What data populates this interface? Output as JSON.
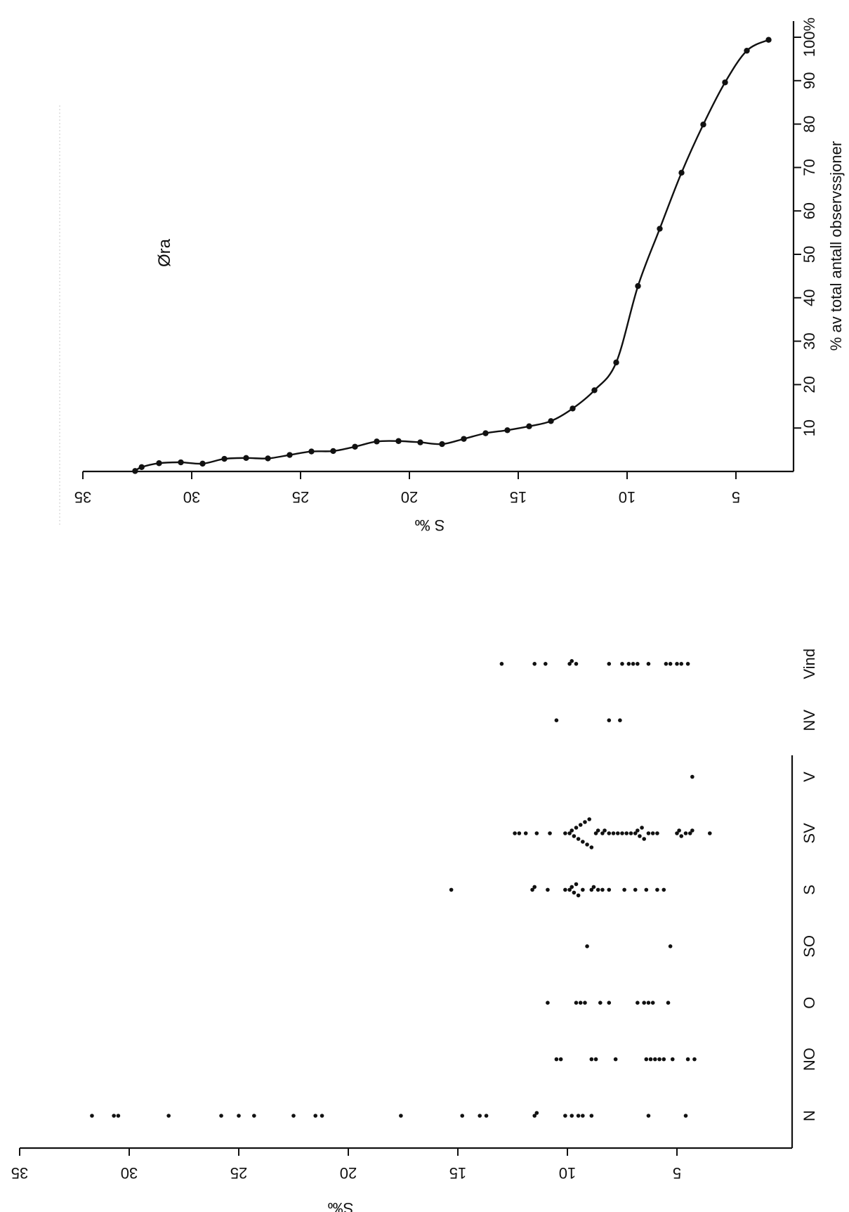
{
  "chart_data": [
    {
      "type": "line",
      "title": "Øra",
      "xlabel": "S ‰",
      "ylabel": "% av total antall observssjoner",
      "xlim": [
        35,
        2.5
      ],
      "ylim": [
        0,
        100
      ],
      "x_ticks": [
        "35",
        "30",
        "25",
        "20",
        "15",
        "10",
        "5"
      ],
      "y_ticks": [
        "10",
        "20",
        "30",
        "40",
        "50",
        "60",
        "70",
        "80",
        "90",
        "100%"
      ],
      "grid": false,
      "x": [
        32.6,
        32.3,
        31.5,
        30.5,
        29.5,
        28.5,
        27.5,
        26.5,
        25.5,
        24.5,
        23.5,
        22.5,
        21.5,
        20.5,
        19.5,
        18.5,
        17.5,
        16.5,
        15.5,
        14.5,
        13.5,
        12.5,
        11.5,
        10.5,
        9.5,
        8.5,
        7.5,
        6.5,
        5.5,
        4.5,
        3.5
      ],
      "values": [
        0.1,
        1.0,
        1.9,
        2.1,
        1.8,
        2.9,
        3.1,
        3.0,
        3.8,
        4.6,
        4.7,
        5.7,
        6.9,
        7.0,
        6.7,
        6.3,
        7.5,
        8.8,
        9.5,
        10.4,
        11.6,
        14.5,
        18.7,
        25.1,
        42.7,
        55.9,
        68.8,
        79.9,
        89.6,
        96.9,
        99.4
      ]
    },
    {
      "type": "scatter",
      "xlabel": "S‰",
      "ylabel": "Vind",
      "xlim": [
        35,
        0.5
      ],
      "x_ticks": [
        "35",
        "30",
        "25",
        "20",
        "15",
        "10",
        "5"
      ],
      "categories": [
        "N",
        "NO",
        "O",
        "SO",
        "S",
        "SV",
        "V",
        "NV",
        "Vind"
      ],
      "grid": false,
      "points": {
        "N": [
          31.7,
          30.7,
          30.5,
          28.2,
          25.8,
          25.0,
          24.3,
          22.5,
          21.5,
          21.2,
          17.6,
          14.8,
          14.0,
          13.7,
          11.5,
          11.4,
          10.1,
          9.8,
          9.5,
          9.3,
          8.9,
          6.3,
          4.6
        ],
        "NO": [
          10.5,
          10.3,
          8.9,
          8.7,
          7.8,
          6.4,
          6.2,
          6.0,
          5.8,
          5.6,
          5.2,
          4.5,
          4.2
        ],
        "O": [
          10.9,
          9.6,
          9.4,
          9.2,
          8.5,
          8.1,
          6.8,
          6.5,
          6.3,
          6.1,
          5.4
        ],
        "SO": [
          9.1,
          5.3
        ],
        "S": [
          15.3,
          11.6,
          11.5,
          10.9,
          10.1,
          9.9,
          9.8,
          9.7,
          9.6,
          9.5,
          9.3,
          8.9,
          8.8,
          8.6,
          8.4,
          8.1,
          7.4,
          6.9,
          6.4,
          5.9,
          5.6
        ],
        "SV": [
          12.4,
          12.2,
          11.9,
          11.4,
          10.8,
          10.1,
          9.9,
          9.8,
          9.7,
          9.6,
          9.5,
          9.4,
          9.3,
          9.2,
          9.1,
          9.0,
          8.9,
          8.7,
          8.6,
          8.4,
          8.3,
          8.1,
          7.9,
          7.7,
          7.5,
          7.3,
          7.1,
          6.9,
          6.8,
          6.7,
          6.6,
          6.5,
          6.3,
          6.1,
          5.9,
          5.0,
          4.9,
          4.8,
          4.6,
          4.4,
          4.3,
          3.5
        ],
        "V": [
          4.3
        ],
        "NV": [
          10.5,
          8.1,
          7.6
        ],
        "Vind": [
          13.0,
          11.5,
          11.0,
          9.9,
          9.8,
          9.6,
          8.1,
          7.5,
          7.2,
          7.0,
          6.8,
          6.3,
          5.5,
          5.3,
          5.0,
          4.8,
          4.5
        ]
      }
    }
  ]
}
